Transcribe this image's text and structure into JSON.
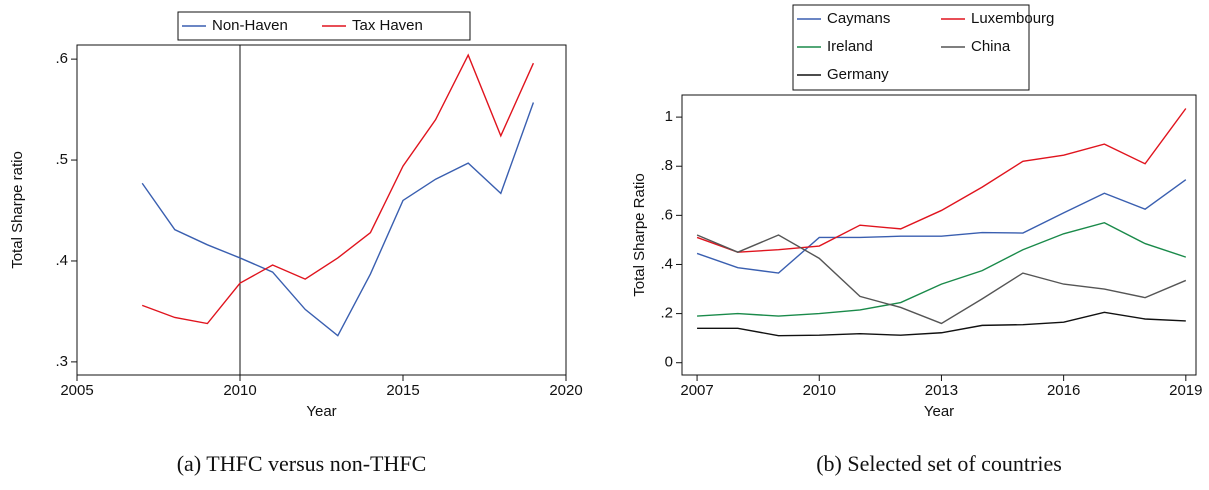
{
  "chart_data": [
    {
      "type": "line",
      "caption": "(a) THFC versus non-THFC",
      "x_label": "Year",
      "y_label": "Total Sharpe ratio",
      "x": [
        2007,
        2008,
        2009,
        2010,
        2011,
        2012,
        2013,
        2014,
        2015,
        2016,
        2017,
        2018,
        2019
      ],
      "series": [
        {
          "name": "Non-Haven",
          "color": "#3a5fb0",
          "values": [
            0.477,
            0.431,
            0.416,
            0.403,
            0.389,
            0.352,
            0.326,
            0.387,
            0.46,
            0.481,
            0.497,
            0.467,
            0.557
          ]
        },
        {
          "name": "Tax Haven",
          "color": "#e0141e",
          "values": [
            0.356,
            0.344,
            0.338,
            0.378,
            0.396,
            0.382,
            0.403,
            0.428,
            0.494,
            0.54,
            0.604,
            0.524,
            0.596
          ]
        }
      ],
      "vline": 2010,
      "xlim": [
        2005,
        2020
      ],
      "xticks": [
        2005,
        2010,
        2015,
        2020
      ],
      "ylim": [
        0.287,
        0.614
      ],
      "yticks": [
        {
          "value": 0.3,
          "label": ".3"
        },
        {
          "value": 0.4,
          "label": ".4"
        },
        {
          "value": 0.5,
          "label": ".5"
        },
        {
          "value": 0.6,
          "label": ".6"
        }
      ],
      "legend": "top"
    },
    {
      "type": "line",
      "caption": "(b) Selected set of countries",
      "x_label": "Year",
      "y_label": "Total Sharpe Ratio",
      "x": [
        2007,
        2008,
        2009,
        2010,
        2011,
        2012,
        2013,
        2014,
        2015,
        2016,
        2017,
        2018,
        2019
      ],
      "series": [
        {
          "name": "Caymans",
          "color": "#3a5fb0",
          "values": [
            0.445,
            0.387,
            0.365,
            0.51,
            0.51,
            0.515,
            0.515,
            0.53,
            0.528,
            0.61,
            0.69,
            0.625,
            0.745
          ]
        },
        {
          "name": "Luxembourg",
          "color": "#e0141e",
          "values": [
            0.51,
            0.45,
            0.46,
            0.475,
            0.56,
            0.545,
            0.62,
            0.715,
            0.82,
            0.845,
            0.89,
            0.81,
            1.035
          ]
        },
        {
          "name": "Ireland",
          "color": "#1a8a4a",
          "values": [
            0.19,
            0.2,
            0.19,
            0.2,
            0.215,
            0.245,
            0.32,
            0.375,
            0.46,
            0.525,
            0.57,
            0.485,
            0.43
          ]
        },
        {
          "name": "China",
          "color": "#555555",
          "values": [
            0.52,
            0.45,
            0.52,
            0.425,
            0.27,
            0.225,
            0.16,
            0.26,
            0.365,
            0.32,
            0.3,
            0.265,
            0.335
          ]
        },
        {
          "name": "Germany",
          "color": "#111111",
          "values": [
            0.14,
            0.14,
            0.11,
            0.112,
            0.118,
            0.112,
            0.122,
            0.152,
            0.155,
            0.165,
            0.205,
            0.178,
            0.17
          ]
        }
      ],
      "xlim": [
        2006.63,
        2019.25
      ],
      "xticks": [
        2007,
        2010,
        2013,
        2016,
        2019
      ],
      "ylim": [
        -0.05,
        1.09
      ],
      "yticks": [
        0,
        {
          "value": 0.2,
          "label": ".2"
        },
        {
          "value": 0.4,
          "label": ".4"
        },
        {
          "value": 0.6,
          "label": ".6"
        },
        {
          "value": 0.8,
          "label": ".8"
        },
        1
      ],
      "legend": "top"
    }
  ]
}
